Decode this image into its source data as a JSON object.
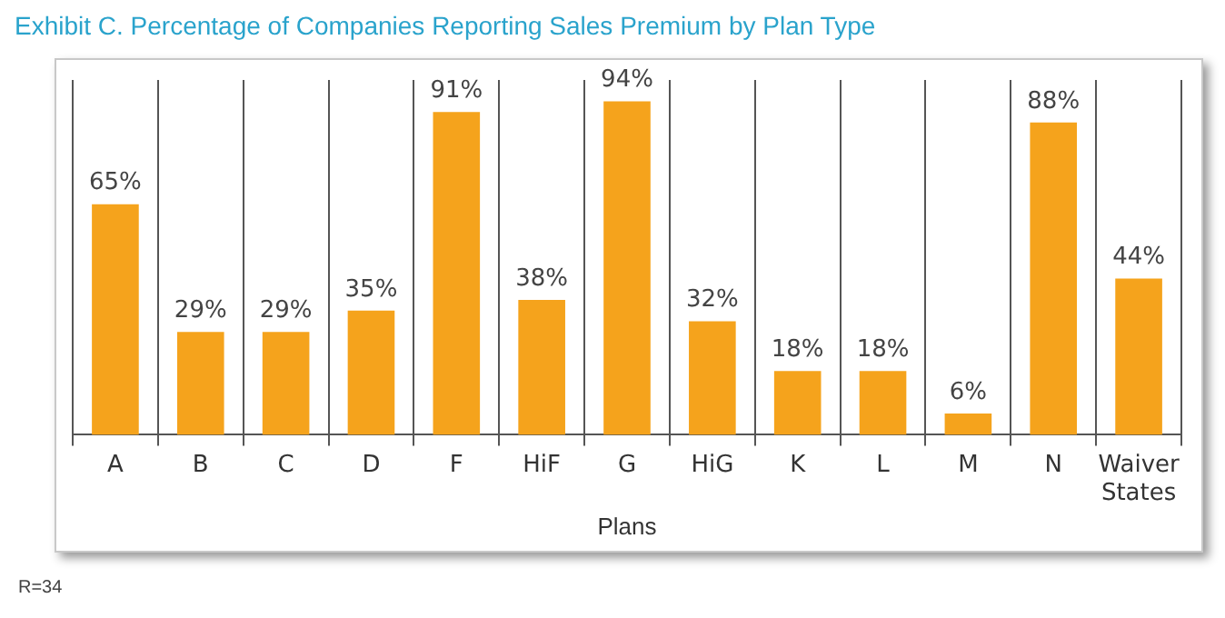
{
  "chart_data": {
    "type": "bar",
    "title": "Exhibit C. Percentage of Companies Reporting Sales Premium by Plan Type",
    "xlabel": "Plans",
    "categories": [
      "A",
      "B",
      "C",
      "D",
      "F",
      "HiF",
      "G",
      "HiG",
      "K",
      "L",
      "M",
      "N",
      "Waiver States"
    ],
    "values": [
      65,
      29,
      29,
      35,
      91,
      38,
      94,
      32,
      18,
      18,
      6,
      88,
      44
    ],
    "value_labels": [
      "65%",
      "29%",
      "29%",
      "35%",
      "91%",
      "38%",
      "94%",
      "32%",
      "18%",
      "18%",
      "6%",
      "88%",
      "44%"
    ],
    "color": "#f5a31c",
    "grid": "x",
    "legend": false,
    "tick_labels": "x",
    "annotations": [
      "R=34"
    ]
  }
}
